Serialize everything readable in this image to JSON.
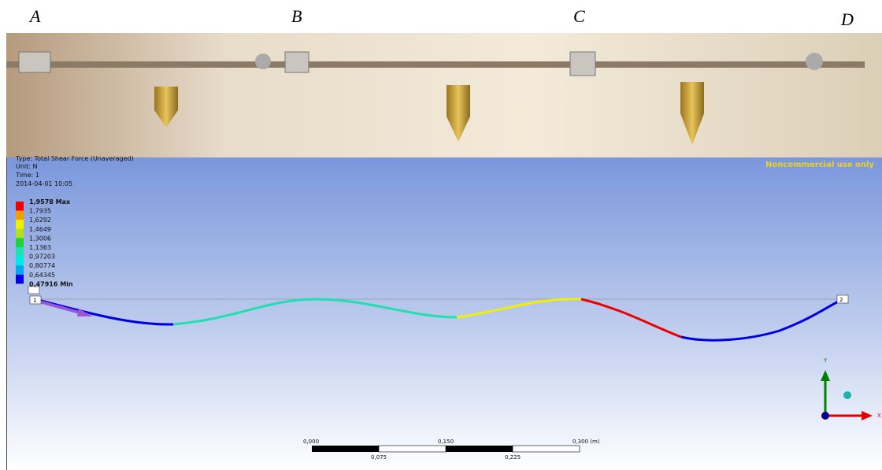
{
  "photo": {
    "labels": [
      "A",
      "B",
      "C",
      "D"
    ]
  },
  "result": {
    "info": [
      "Type: Total Shear Force (Unaveraged)",
      "Unit: N",
      "Time: 1",
      "2014-04-01 10:05"
    ],
    "legend": [
      "1,9578 Max",
      "1,7935",
      "1,6292",
      "1,4649",
      "1,3006",
      "1,1363",
      "0,97203",
      "0,80774",
      "0,64345",
      "0,47916 Min"
    ],
    "watermark": "Noncommercial use only",
    "nodes": [
      "1",
      "2"
    ],
    "scale_top": [
      "0,000",
      "0,150",
      "0,300 (m)"
    ],
    "scale_bottom": [
      "0,075",
      "0,225"
    ],
    "axes": [
      "Y",
      "X"
    ]
  }
}
